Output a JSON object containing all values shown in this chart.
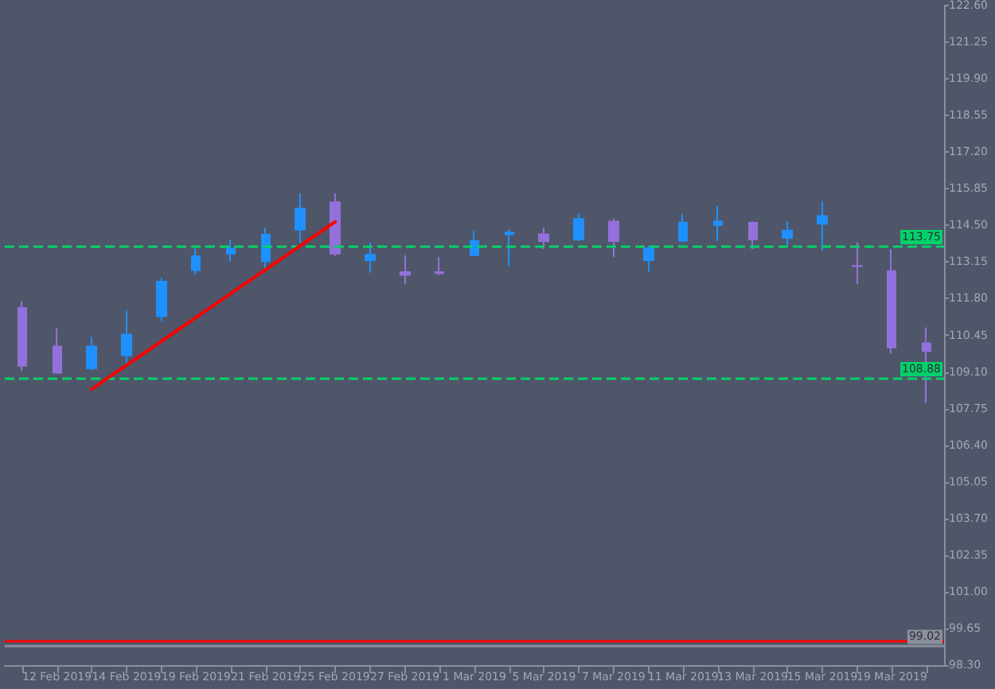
{
  "chart_data": {
    "type": "candlestick",
    "categories": [
      null,
      "12 Feb 2019",
      null,
      "14 Feb 2019",
      null,
      "19 Feb 2019",
      null,
      "21 Feb 2019",
      null,
      "25 Feb 2019",
      null,
      "27 Feb 2019",
      null,
      "1 Mar 2019",
      null,
      "5 Mar 2019",
      null,
      "7 Mar 2019",
      null,
      "11 Mar 2019",
      null,
      "13 Mar 2019",
      null,
      "15 Mar 2019",
      null,
      "19 Mar 2019",
      null
    ],
    "ohlc": [
      [
        111.46,
        111.71,
        109.13,
        109.33
      ],
      [
        110.04,
        110.72,
        109.04,
        109.07
      ],
      [
        109.23,
        110.39,
        109.17,
        110.04
      ],
      [
        109.71,
        111.36,
        109.42,
        110.48
      ],
      [
        111.15,
        112.56,
        110.97,
        112.43
      ],
      [
        112.85,
        113.65,
        112.68,
        113.37
      ],
      [
        113.46,
        113.98,
        113.17,
        113.65
      ],
      [
        113.18,
        114.42,
        112.82,
        114.16
      ],
      [
        114.35,
        115.68,
        113.84,
        115.12
      ],
      [
        115.35,
        115.68,
        113.38,
        113.46
      ],
      [
        113.22,
        113.88,
        112.76,
        113.42
      ],
      [
        112.78,
        113.4,
        112.33,
        112.68
      ],
      [
        112.78,
        113.34,
        112.68,
        112.74
      ],
      [
        113.4,
        114.31,
        113.4,
        113.92
      ],
      [
        114.17,
        114.35,
        113.0,
        114.24
      ],
      [
        114.17,
        114.42,
        113.63,
        113.92
      ],
      [
        113.98,
        114.95,
        113.92,
        114.74
      ],
      [
        114.64,
        114.75,
        113.34,
        113.92
      ],
      [
        113.22,
        113.75,
        112.79,
        113.65
      ],
      [
        113.94,
        114.91,
        113.88,
        114.6
      ],
      [
        114.52,
        115.2,
        113.92,
        114.65
      ],
      [
        114.6,
        114.65,
        113.63,
        113.98
      ],
      [
        114.04,
        114.65,
        113.78,
        114.31
      ],
      [
        114.56,
        115.38,
        113.57,
        114.85
      ],
      [
        113.01,
        113.88,
        112.33,
        113.0
      ],
      [
        112.82,
        113.63,
        109.77,
        110.0
      ],
      [
        110.16,
        110.74,
        107.95,
        109.87
      ]
    ],
    "colors": [
      "#9370db",
      "#9370db",
      "#1e90ff",
      "#1e90ff",
      "#1e90ff",
      "#1e90ff",
      "#1e90ff",
      "#1e90ff",
      "#1e90ff",
      "#9370db",
      "#1e90ff",
      "#9370db",
      "#9370db",
      "#1e90ff",
      "#1e90ff",
      "#9370db",
      "#1e90ff",
      "#9370db",
      "#1e90ff",
      "#1e90ff",
      "#1e90ff",
      "#9370db",
      "#1e90ff",
      "#1e90ff",
      "#9370db",
      "#9370db",
      "#9370db"
    ],
    "series": [
      {
        "type": "line",
        "color": "#ff0000",
        "values": [
          null,
          null,
          108.47,
          null,
          null,
          null,
          null,
          null,
          null,
          114.64,
          null,
          null,
          null,
          null,
          null,
          null,
          null,
          null,
          null,
          null,
          null,
          null,
          null,
          null,
          null,
          null,
          null
        ]
      }
    ],
    "ylim": [
      98.3,
      122.6
    ],
    "yticks": [
      {
        "value": 98.3,
        "label": "98.30"
      },
      99.65,
      {
        "value": 101.0,
        "label": "101.00"
      },
      102.35,
      {
        "value": 103.7,
        "label": "103.70"
      },
      105.05,
      {
        "value": 106.4,
        "label": "106.40"
      },
      107.75,
      {
        "value": 109.1,
        "label": "109.10"
      },
      110.45,
      {
        "value": 111.8,
        "label": "111.80"
      },
      113.15,
      {
        "value": 114.5,
        "label": "114.50"
      },
      115.85,
      {
        "value": 117.2,
        "label": "117.20"
      },
      118.55,
      {
        "value": 119.9,
        "label": "119.90"
      },
      121.25,
      {
        "value": 122.6,
        "label": "122.60"
      }
    ],
    "ref_lines": [
      {
        "axis": "y",
        "value": 113.75,
        "label": "113.75",
        "color": "#00d26a",
        "line_style": "dashed"
      },
      {
        "axis": "y",
        "value": 108.88,
        "label": "108.88",
        "color": "#00d26a",
        "line_style": "dashed"
      },
      {
        "axis": "y",
        "value": 99.02,
        "label": "99.02",
        "color": "#8a8f9c",
        "line_style": "solid"
      },
      {
        "axis": "y",
        "value": 99.2,
        "label": null,
        "color": "#ff0000",
        "line_style": "solid"
      }
    ]
  }
}
